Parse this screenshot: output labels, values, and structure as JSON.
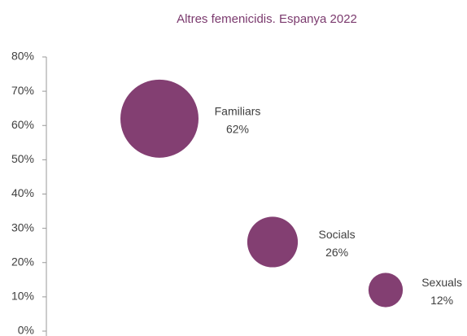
{
  "chart_data": {
    "type": "bubble",
    "title": "Altres femenicidis. Espanya 2022",
    "categories": [
      "Familiars",
      "Socials",
      "Sexuals"
    ],
    "values": [
      62,
      26,
      12
    ],
    "value_labels": [
      "62%",
      "26%",
      "12%"
    ],
    "sizes": [
      62,
      26,
      12
    ],
    "color": "#833f72",
    "ylim": [
      0,
      80
    ],
    "yticks": [
      {
        "value": 0,
        "label": "0%"
      },
      {
        "value": 10,
        "label": "10%"
      },
      {
        "value": 20,
        "label": "20%"
      },
      {
        "value": 30,
        "label": "30%"
      },
      {
        "value": 40,
        "label": "40%"
      },
      {
        "value": 50,
        "label": "50%"
      },
      {
        "value": 60,
        "label": "60%"
      },
      {
        "value": 70,
        "label": "70%"
      },
      {
        "value": 80,
        "label": "80%"
      }
    ]
  }
}
